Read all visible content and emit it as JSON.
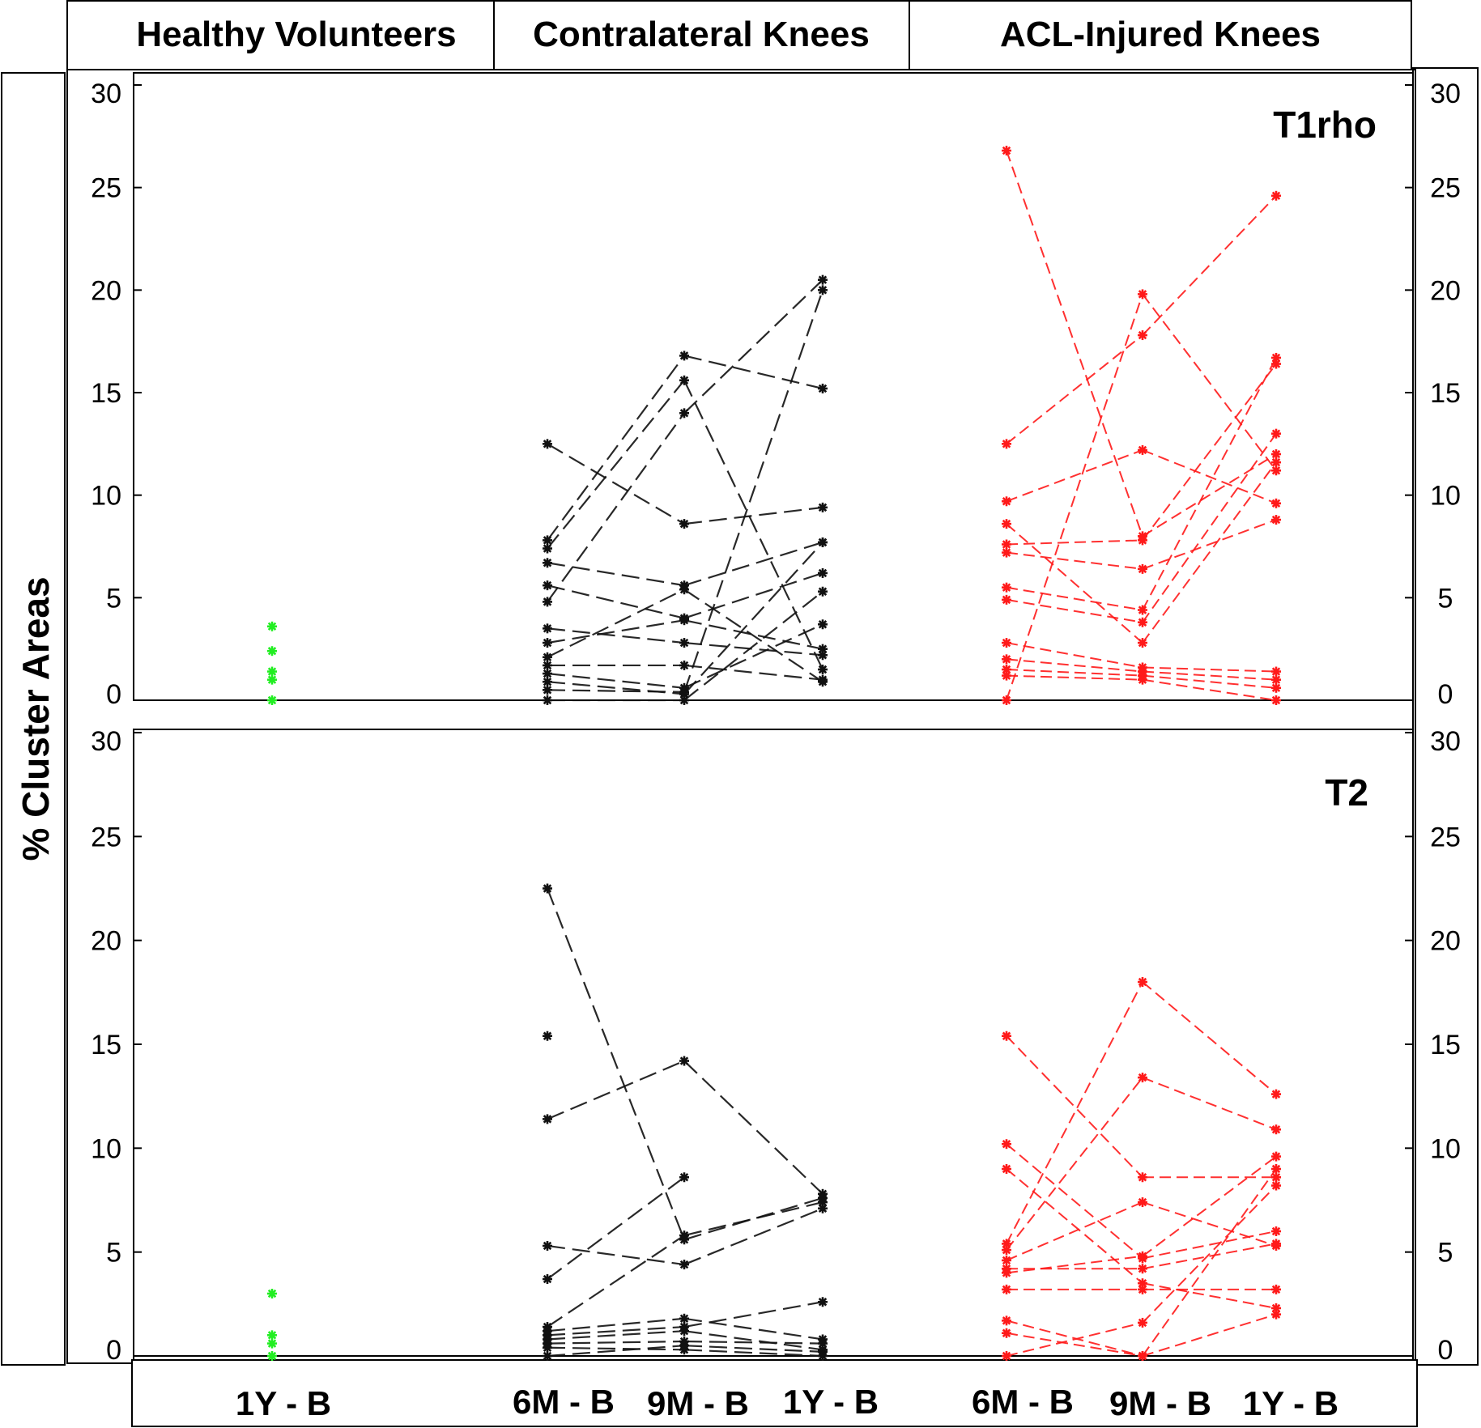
{
  "chart_data": {
    "type": "line",
    "ylabel": "% Cluster Areas",
    "ylim": [
      0,
      30
    ],
    "yticks": [
      0,
      5,
      10,
      15,
      20,
      25,
      30
    ],
    "group_headers": [
      "Healthy Volunteers",
      "Contralateral Knees",
      "ACL-Injured Knees"
    ],
    "x_labels": [
      "1Y - B",
      "6M - B",
      "9M - B",
      "1Y - B",
      "6M - B",
      "9M - B",
      "1Y - B"
    ],
    "colors": {
      "healthy": "#22ee22",
      "contralateral": "#111111",
      "acl": "#ff1a1a"
    },
    "panels": [
      {
        "title": "T1rho",
        "healthy": [
          3.6,
          2.4,
          1.4,
          1.0,
          0.0
        ],
        "contralateral": [
          [
            7.8,
            16.8,
            15.2
          ],
          [
            12.5,
            8.6,
            9.4
          ],
          [
            7.4,
            15.6,
            1.5
          ],
          [
            4.8,
            14.0,
            20.5
          ],
          [
            6.7,
            5.6,
            7.7
          ],
          [
            5.6,
            4.0,
            6.2
          ],
          [
            3.5,
            2.8,
            2.2
          ],
          [
            2.8,
            3.9,
            2.5
          ],
          [
            2.1,
            5.4,
            0.9
          ],
          [
            1.7,
            1.7,
            1.0
          ],
          [
            1.3,
            0.6,
            3.7
          ],
          [
            0.9,
            0.3,
            7.7
          ],
          [
            0.5,
            0.4,
            20.0
          ],
          [
            0.0,
            0.0,
            5.3
          ]
        ],
        "acl": [
          [
            26.8,
            8.0,
            12.0
          ],
          [
            12.5,
            17.8,
            24.6
          ],
          [
            9.7,
            12.2,
            9.6
          ],
          [
            8.6,
            2.8,
            11.6
          ],
          [
            7.6,
            7.8,
            16.4
          ],
          [
            7.2,
            6.4,
            8.8
          ],
          [
            5.5,
            4.4,
            16.7
          ],
          [
            4.9,
            3.8,
            13.0
          ],
          [
            2.8,
            1.6,
            1.4
          ],
          [
            2.0,
            1.4,
            1.0
          ],
          [
            1.5,
            1.2,
            0.6
          ],
          [
            1.2,
            1.0,
            0.0
          ],
          [
            0.0,
            19.8,
            11.2
          ]
        ]
      },
      {
        "title": "T2",
        "healthy": [
          3.0,
          1.0,
          0.6,
          0.0
        ],
        "contralateral": [
          [
            22.5,
            5.6,
            7.6
          ],
          [
            11.4,
            14.2,
            7.8
          ],
          [
            5.3,
            4.4,
            7.1
          ],
          [
            3.7,
            8.6,
            null
          ],
          [
            1.4,
            5.8,
            7.4
          ],
          [
            1.2,
            1.8,
            0.8
          ],
          [
            1.0,
            1.4,
            2.6
          ],
          [
            0.8,
            1.2,
            0.3
          ],
          [
            0.6,
            0.7,
            0.6
          ],
          [
            0.4,
            0.3,
            0.0
          ],
          [
            0.0,
            0.5,
            0.2
          ],
          [
            15.4,
            null,
            null
          ]
        ],
        "acl": [
          [
            15.4,
            8.6,
            8.6
          ],
          [
            10.2,
            4.7,
            6.0
          ],
          [
            9.0,
            3.5,
            2.3
          ],
          [
            5.4,
            18.0,
            12.6
          ],
          [
            5.1,
            13.4,
            10.9
          ],
          [
            4.6,
            7.4,
            5.3
          ],
          [
            4.0,
            4.8,
            9.6
          ],
          [
            3.2,
            3.2,
            3.2
          ],
          [
            1.7,
            0.0,
            9.0
          ],
          [
            1.1,
            0.0,
            2.0
          ],
          [
            0.0,
            1.6,
            8.2
          ],
          [
            4.2,
            4.2,
            5.4
          ]
        ]
      }
    ]
  }
}
